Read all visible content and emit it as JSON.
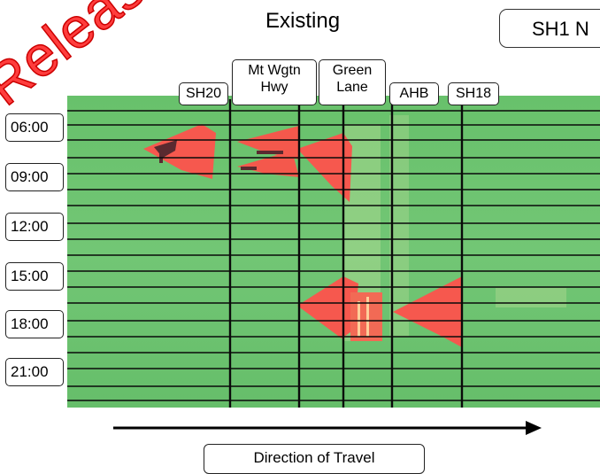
{
  "title": "Existing",
  "corner_label": "SH1 N",
  "locations": [
    "SH20",
    "Mt Wgtn Hwy",
    "Green Lane",
    "AHB",
    "SH18"
  ],
  "times": [
    "06:00",
    "09:00",
    "12:00",
    "15:00",
    "18:00",
    "21:00"
  ],
  "caption": "Direction of Travel",
  "watermark": "Released",
  "colors": {
    "free_flow": "#6cc36f",
    "congestion": "#f6584e",
    "severe": "#5a2a30",
    "grid": "#0a0a0a"
  }
}
